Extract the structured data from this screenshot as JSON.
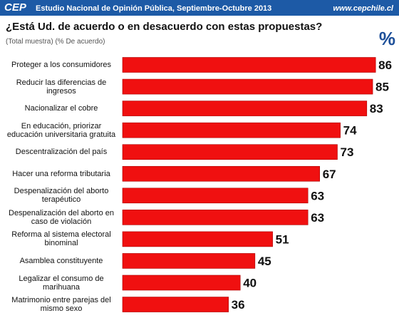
{
  "header": {
    "logo": "CEP",
    "text": "Estudio Nacional de Opinión Pública, Septiembre-Octubre 2013",
    "url": "www.cepchile.cl"
  },
  "chart_data": {
    "type": "bar",
    "orientation": "horizontal",
    "title": "¿Está Ud. de acuerdo o en desacuerdo con estas propuestas?",
    "subtitle": "(Total muestra) (% De acuerdo)",
    "unit_label": "%",
    "color": "#f01010",
    "categories": [
      "Proteger a los consumidores",
      "Reducir las diferencias de\ningresos",
      "Nacionalizar el cobre",
      "En educación, priorizar\neducación universitaria gratuita",
      "Descentralización del país",
      "Hacer una reforma tributaria",
      "Despenalización del aborto\nterapéutico",
      "Despenalización del aborto en\ncaso de violación",
      "Reforma al sistema electoral\nbinominal",
      "Asamblea constituyente",
      "Legalizar el consumo de\nmarihuana",
      "Matrimonio entre parejas del\nmismo sexo"
    ],
    "values": [
      86,
      85,
      83,
      74,
      73,
      67,
      63,
      63,
      51,
      45,
      40,
      36
    ]
  }
}
